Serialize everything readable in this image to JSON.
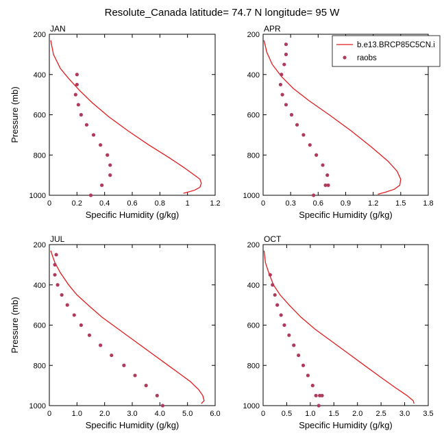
{
  "figure": {
    "title": "Resolute_Canada  latitude= 74.7 N longitude= 95 W"
  },
  "legend": {
    "model_label": "b.e13.BRCP85C5CN.i",
    "obs_label": "raobs",
    "model_color": "#e41a1c",
    "obs_color": "#b03a5b"
  },
  "chart_data": [
    {
      "type": "line",
      "panel": "JAN",
      "xlabel": "Specific Humidity (g/kg)",
      "ylabel": "Pressure (mb)",
      "xlim": [
        0,
        1.2
      ],
      "ylim": [
        200,
        1000
      ],
      "y_reversed": true,
      "xticks": [
        0,
        0.2,
        0.4,
        0.6,
        0.8,
        1,
        1.2
      ],
      "xtick_labels": [
        "0",
        "0.2",
        "0.4",
        "0.6",
        "0.8",
        "1",
        "1.2"
      ],
      "yticks": [
        200,
        400,
        600,
        800,
        1000
      ],
      "ytick_labels": [
        "200",
        "400",
        "600",
        "800",
        "1000"
      ],
      "series": [
        {
          "name": "b.e13.BRCP85C5CN.i",
          "kind": "line",
          "x": [
            0.01,
            0.03,
            0.08,
            0.14,
            0.22,
            0.31,
            0.43,
            0.57,
            0.72,
            0.86,
            0.97,
            1.05,
            1.09,
            1.1,
            1.09,
            1.05,
            0.97
          ],
          "y": [
            230,
            300,
            370,
            420,
            480,
            540,
            610,
            680,
            750,
            810,
            860,
            900,
            920,
            940,
            960,
            975,
            990
          ]
        },
        {
          "name": "raobs",
          "kind": "scatter",
          "x": [
            0.2,
            0.2,
            0.19,
            0.21,
            0.23,
            0.27,
            0.32,
            0.37,
            0.42,
            0.44,
            0.44,
            0.38,
            0.3
          ],
          "y": [
            400,
            450,
            500,
            550,
            600,
            650,
            700,
            750,
            800,
            850,
            900,
            950,
            1000
          ]
        }
      ]
    },
    {
      "type": "line",
      "panel": "APR",
      "xlabel": "Specific Humidity (g/kg)",
      "ylabel": "",
      "xlim": [
        0,
        1.8
      ],
      "ylim": [
        200,
        1000
      ],
      "y_reversed": true,
      "xticks": [
        0,
        0.3,
        0.6,
        0.9,
        1.2,
        1.5,
        1.8
      ],
      "xtick_labels": [
        "0",
        "0.3",
        "0.6",
        "0.9",
        "1.2",
        "1.5",
        "1.8"
      ],
      "yticks": [
        200,
        400,
        600,
        800,
        1000
      ],
      "ytick_labels": [
        "200",
        "400",
        "600",
        "800",
        "1000"
      ],
      "series": [
        {
          "name": "b.e13.BRCP85C5CN.i",
          "kind": "line",
          "x": [
            0.01,
            0.04,
            0.1,
            0.2,
            0.33,
            0.5,
            0.72,
            0.96,
            1.18,
            1.36,
            1.46,
            1.5,
            1.49,
            1.43,
            1.33,
            1.25
          ],
          "y": [
            230,
            290,
            350,
            410,
            470,
            530,
            600,
            680,
            760,
            830,
            880,
            920,
            950,
            970,
            985,
            995
          ]
        },
        {
          "name": "raobs",
          "kind": "scatter",
          "x": [
            0.25,
            0.25,
            0.23,
            0.2,
            0.19,
            0.21,
            0.25,
            0.31,
            0.37,
            0.44,
            0.51,
            0.58,
            0.65,
            0.7,
            0.71,
            0.68,
            0.55
          ],
          "y": [
            250,
            300,
            350,
            400,
            450,
            500,
            550,
            600,
            650,
            700,
            750,
            800,
            850,
            900,
            950,
            950,
            1000
          ]
        }
      ]
    },
    {
      "type": "line",
      "panel": "JUL",
      "xlabel": "Specific Humidity (g/kg)",
      "ylabel": "Pressure (mb)",
      "xlim": [
        0,
        6.0
      ],
      "ylim": [
        200,
        1000
      ],
      "y_reversed": true,
      "xticks": [
        0,
        1.0,
        2.0,
        3.0,
        4.0,
        5.0,
        6.0
      ],
      "xtick_labels": [
        "0",
        "1.0",
        "2.0",
        "3.0",
        "4.0",
        "5.0",
        "6.0"
      ],
      "yticks": [
        200,
        400,
        600,
        800,
        1000
      ],
      "ytick_labels": [
        "200",
        "400",
        "600",
        "800",
        "1000"
      ],
      "series": [
        {
          "name": "b.e13.BRCP85C5CN.i",
          "kind": "line",
          "x": [
            0.05,
            0.2,
            0.4,
            0.7,
            1.0,
            1.4,
            1.9,
            2.5,
            3.1,
            3.7,
            4.2,
            4.7,
            5.1,
            5.4,
            5.55,
            5.6,
            5.5
          ],
          "y": [
            230,
            290,
            340,
            400,
            450,
            500,
            560,
            620,
            680,
            740,
            790,
            840,
            880,
            920,
            950,
            975,
            990
          ]
        },
        {
          "name": "raobs",
          "kind": "scatter",
          "x": [
            0.25,
            0.2,
            0.2,
            0.3,
            0.45,
            0.65,
            0.9,
            1.15,
            1.45,
            1.85,
            2.25,
            2.7,
            3.1,
            3.5,
            3.9,
            4.1
          ],
          "y": [
            250,
            300,
            350,
            400,
            450,
            500,
            550,
            600,
            650,
            700,
            750,
            800,
            850,
            900,
            950,
            1000
          ]
        }
      ]
    },
    {
      "type": "line",
      "panel": "OCT",
      "xlabel": "Specific Humidity (g/kg)",
      "ylabel": "",
      "xlim": [
        0,
        3.5
      ],
      "ylim": [
        200,
        1000
      ],
      "y_reversed": true,
      "xticks": [
        0,
        0.5,
        1.0,
        1.5,
        2.0,
        2.5,
        3.0,
        3.5
      ],
      "xtick_labels": [
        "0",
        "0.5",
        "1.0",
        "1.5",
        "2.0",
        "2.5",
        "3.0",
        "3.5"
      ],
      "yticks": [
        200,
        400,
        600,
        800,
        1000
      ],
      "ytick_labels": [
        "200",
        "400",
        "600",
        "800",
        "1000"
      ],
      "series": [
        {
          "name": "b.e13.BRCP85C5CN.i",
          "kind": "line",
          "x": [
            0.02,
            0.05,
            0.12,
            0.22,
            0.36,
            0.55,
            0.8,
            1.1,
            1.45,
            1.8,
            2.15,
            2.5,
            2.8,
            3.05,
            3.18,
            3.2
          ],
          "y": [
            230,
            290,
            340,
            400,
            450,
            500,
            560,
            620,
            680,
            740,
            800,
            860,
            910,
            950,
            975,
            990
          ]
        },
        {
          "name": "raobs",
          "kind": "scatter",
          "x": [
            0.15,
            0.2,
            0.25,
            0.3,
            0.38,
            0.45,
            0.55,
            0.65,
            0.75,
            0.85,
            0.95,
            1.05,
            1.12,
            1.2,
            1.25,
            1.18
          ],
          "y": [
            350,
            400,
            450,
            500,
            550,
            600,
            650,
            700,
            750,
            800,
            850,
            900,
            950,
            950,
            950,
            1000
          ]
        }
      ]
    }
  ]
}
